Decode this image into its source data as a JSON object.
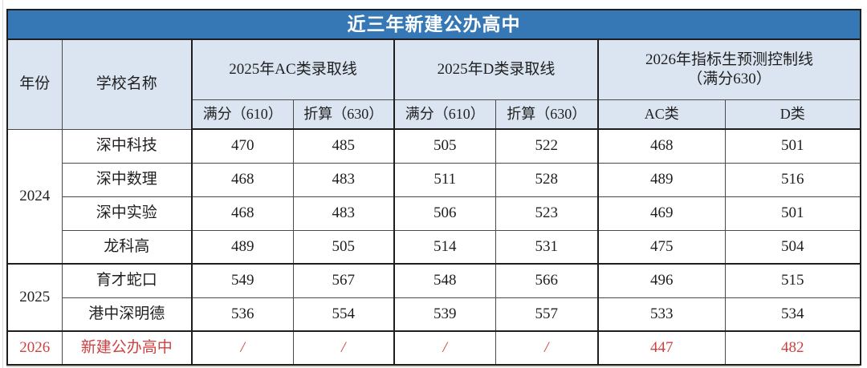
{
  "title": "近三年新建公办高中",
  "headers": {
    "year": "年份",
    "school": "学校名称",
    "group_ac": "2025年AC类录取线",
    "group_d": "2025年D类录取线",
    "group_pred_line1": "2026年指标生预测控制线",
    "group_pred_line2": "（满分630）",
    "sub_full_ac": "满分（610）",
    "sub_conv_ac": "折算（630）",
    "sub_full_d": "满分（610）",
    "sub_conv_d": "折算（630）",
    "sub_pred_ac": "AC类",
    "sub_pred_d": "D类"
  },
  "groups": [
    {
      "year": "2024",
      "rows": [
        {
          "school": "深中科技",
          "vals": [
            "470",
            "485",
            "505",
            "522",
            "468",
            "501"
          ]
        },
        {
          "school": "深中数理",
          "vals": [
            "468",
            "483",
            "511",
            "528",
            "489",
            "516"
          ]
        },
        {
          "school": "深中实验",
          "vals": [
            "468",
            "483",
            "506",
            "523",
            "469",
            "501"
          ]
        },
        {
          "school": "龙科高",
          "vals": [
            "489",
            "505",
            "514",
            "531",
            "475",
            "504"
          ]
        }
      ]
    },
    {
      "year": "2025",
      "rows": [
        {
          "school": "育才蛇口",
          "vals": [
            "549",
            "567",
            "548",
            "566",
            "496",
            "515"
          ]
        },
        {
          "school": "港中深明德",
          "vals": [
            "536",
            "554",
            "539",
            "557",
            "533",
            "534"
          ]
        }
      ]
    },
    {
      "year": "2026",
      "rows": [
        {
          "school": "新建公办高中",
          "vals": [
            "/",
            "/",
            "/",
            "/",
            "447",
            "482"
          ]
        }
      ]
    }
  ],
  "colors": {
    "title_bar_bg": "#3678b6",
    "title_text": "#ffffff",
    "header_bg": "#dbe5f1",
    "highlight_red": "#cf4040",
    "border_dark": "#1e1e1e",
    "border_inner": "#4a4a4a"
  }
}
